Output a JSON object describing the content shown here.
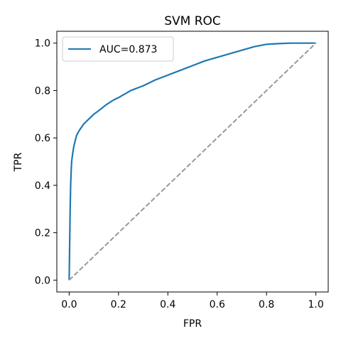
{
  "chart_data": {
    "type": "line",
    "title": "SVM ROC",
    "xlabel": "FPR",
    "ylabel": "TPR",
    "xlim": [
      -0.05,
      1.05
    ],
    "ylim": [
      -0.05,
      1.05
    ],
    "xticks": [
      0.0,
      0.2,
      0.4,
      0.6,
      0.8,
      1.0
    ],
    "yticks": [
      0.0,
      0.2,
      0.4,
      0.6,
      0.8,
      1.0
    ],
    "xtick_labels": [
      "0.0",
      "0.2",
      "0.4",
      "0.6",
      "0.8",
      "1.0"
    ],
    "ytick_labels": [
      "0.0",
      "0.2",
      "0.4",
      "0.6",
      "0.8",
      "1.0"
    ],
    "grid": false,
    "legend_position": "upper-left",
    "series": [
      {
        "name": "AUC=0.873",
        "color": "#1f77b4",
        "style": "solid",
        "x": [
          0.0,
          0.002,
          0.004,
          0.006,
          0.008,
          0.01,
          0.015,
          0.02,
          0.03,
          0.04,
          0.05,
          0.06,
          0.08,
          0.1,
          0.12,
          0.15,
          0.18,
          0.2,
          0.25,
          0.3,
          0.35,
          0.4,
          0.45,
          0.5,
          0.55,
          0.6,
          0.65,
          0.7,
          0.75,
          0.8,
          0.85,
          0.9,
          0.95,
          1.0
        ],
        "y": [
          0.0,
          0.15,
          0.3,
          0.4,
          0.46,
          0.5,
          0.54,
          0.57,
          0.61,
          0.63,
          0.645,
          0.66,
          0.68,
          0.7,
          0.715,
          0.74,
          0.76,
          0.77,
          0.8,
          0.82,
          0.845,
          0.865,
          0.885,
          0.905,
          0.925,
          0.94,
          0.955,
          0.97,
          0.985,
          0.995,
          0.998,
          1.0,
          1.0,
          1.0
        ]
      },
      {
        "name": "",
        "color": "#999999",
        "style": "dashed",
        "x": [
          0.0,
          1.0
        ],
        "y": [
          0.0,
          1.0
        ]
      }
    ]
  }
}
